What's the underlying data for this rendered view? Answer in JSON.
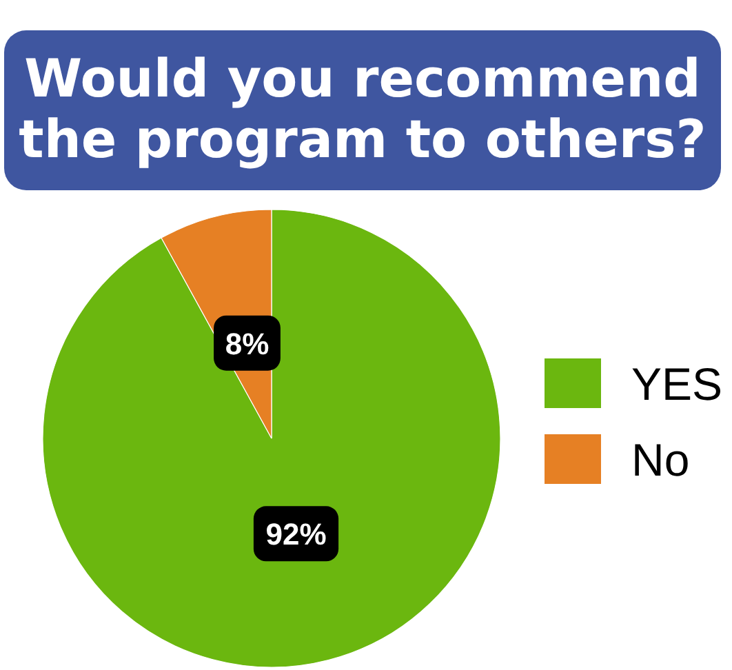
{
  "chart_data": {
    "type": "pie",
    "title": "Would you recommend the program to others?",
    "categories": [
      "YES",
      "No"
    ],
    "values": [
      92,
      8
    ],
    "colors": [
      "#6bb70f",
      "#e68024"
    ],
    "value_labels": [
      "92%",
      "8%"
    ],
    "legend": "right"
  }
}
